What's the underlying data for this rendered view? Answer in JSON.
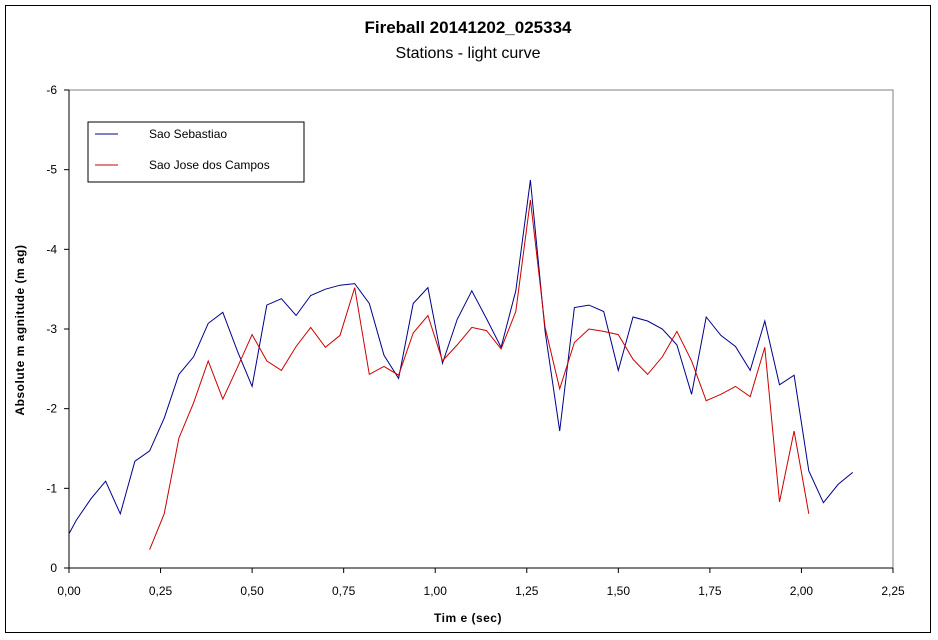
{
  "chart_data": {
    "type": "line",
    "title": "Fireball 20141202_025334",
    "subtitle": "Stations - light curve",
    "xlabel": "Tim e (sec)",
    "ylabel": "Absolute m agnitude (m ag)",
    "xlim": [
      0,
      2.25
    ],
    "ylim": [
      0,
      -6
    ],
    "y_inverted": true,
    "x_ticks": [
      0,
      0.25,
      0.5,
      0.75,
      1.0,
      1.25,
      1.5,
      1.75,
      2.0,
      2.25
    ],
    "x_tick_labels": [
      "0,00",
      "0,25",
      "0,50",
      "0,75",
      "1,00",
      "1,25",
      "1,50",
      "1,75",
      "2,00",
      "2,25"
    ],
    "y_ticks": [
      0,
      -1,
      -2,
      -3,
      -4,
      -5,
      -6
    ],
    "y_tick_labels": [
      "0",
      "-1",
      "-2",
      "-3",
      "-4",
      "-5",
      "-6"
    ],
    "grid": false,
    "legend": "top-left",
    "series": [
      {
        "name": "Sao Sebastiao",
        "color": "#00008b",
        "x": [
          0.0,
          0.02,
          0.06,
          0.1,
          0.14,
          0.18,
          0.22,
          0.26,
          0.3,
          0.34,
          0.38,
          0.42,
          0.46,
          0.5,
          0.54,
          0.58,
          0.62,
          0.66,
          0.7,
          0.74,
          0.78,
          0.82,
          0.86,
          0.9,
          0.94,
          0.98,
          1.02,
          1.06,
          1.1,
          1.14,
          1.18,
          1.22,
          1.26,
          1.3,
          1.34,
          1.38,
          1.42,
          1.46,
          1.5,
          1.54,
          1.58,
          1.62,
          1.66,
          1.7,
          1.74,
          1.78,
          1.82,
          1.86,
          1.9,
          1.94,
          1.98,
          2.02,
          2.06,
          2.1,
          2.14
        ],
        "y": [
          -0.43,
          -0.6,
          -0.87,
          -1.09,
          -0.68,
          -1.34,
          -1.47,
          -1.88,
          -2.43,
          -2.65,
          -3.07,
          -3.21,
          -2.72,
          -2.28,
          -3.3,
          -3.38,
          -3.17,
          -3.42,
          -3.5,
          -3.55,
          -3.57,
          -3.32,
          -2.67,
          -2.38,
          -3.32,
          -3.52,
          -2.57,
          -3.12,
          -3.48,
          -3.13,
          -2.77,
          -3.48,
          -4.87,
          -2.97,
          -1.72,
          -3.27,
          -3.3,
          -3.22,
          -2.48,
          -3.15,
          -3.1,
          -3.0,
          -2.8,
          -2.18,
          -3.15,
          -2.92,
          -2.78,
          -2.48,
          -3.1,
          -2.3,
          -2.42,
          -1.22,
          -0.82,
          -1.05,
          -1.2
        ]
      },
      {
        "name": "Sao Jose dos Campos",
        "color": "#cc0000",
        "x": [
          0.22,
          0.26,
          0.3,
          0.34,
          0.38,
          0.42,
          0.46,
          0.5,
          0.54,
          0.58,
          0.62,
          0.66,
          0.7,
          0.74,
          0.78,
          0.82,
          0.86,
          0.9,
          0.94,
          0.98,
          1.02,
          1.06,
          1.1,
          1.14,
          1.18,
          1.22,
          1.26,
          1.3,
          1.34,
          1.38,
          1.42,
          1.46,
          1.5,
          1.54,
          1.58,
          1.62,
          1.66,
          1.7,
          1.74,
          1.78,
          1.82,
          1.86,
          1.9,
          1.94,
          1.98,
          2.02
        ],
        "y": [
          -0.23,
          -0.68,
          -1.63,
          -2.07,
          -2.6,
          -2.12,
          -2.52,
          -2.93,
          -2.6,
          -2.48,
          -2.78,
          -3.02,
          -2.77,
          -2.92,
          -3.52,
          -2.43,
          -2.53,
          -2.42,
          -2.95,
          -3.17,
          -2.6,
          -2.8,
          -3.02,
          -2.98,
          -2.75,
          -3.22,
          -4.62,
          -3.02,
          -2.25,
          -2.83,
          -3.0,
          -2.97,
          -2.93,
          -2.62,
          -2.43,
          -2.65,
          -2.97,
          -2.6,
          -2.1,
          -2.18,
          -2.28,
          -2.15,
          -2.77,
          -0.83,
          -1.72,
          -0.68
        ]
      }
    ]
  }
}
